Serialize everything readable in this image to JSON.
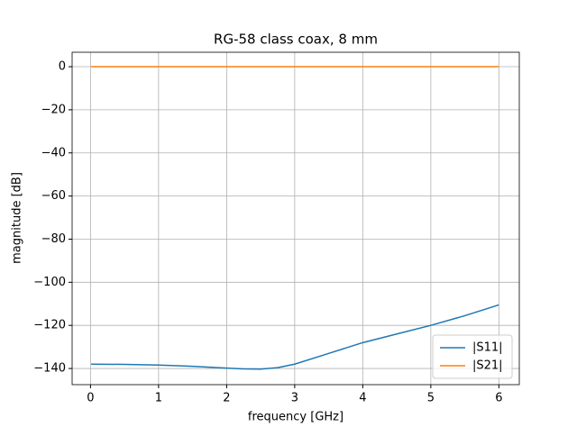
{
  "chart_data": {
    "type": "line",
    "title": "RG-58 class coax, 8 mm",
    "xlabel": "frequency [GHz]",
    "ylabel": "magnitude [dB]",
    "x": [
      0.01,
      0.5,
      1,
      1.5,
      2,
      2.25,
      2.5,
      2.75,
      3,
      3.5,
      4,
      4.5,
      5,
      5.5,
      6
    ],
    "series": [
      {
        "name": "|S11|",
        "color": "#1f77b4",
        "values": [
          -138,
          -138.1,
          -138.4,
          -139,
          -139.8,
          -140.2,
          -140.3,
          -139.6,
          -138,
          -133,
          -128,
          -124,
          -120,
          -115.5,
          -110.5
        ]
      },
      {
        "name": "|S21|",
        "color": "#ff7f0e",
        "values": [
          0,
          0,
          0,
          0,
          0,
          0,
          0,
          0,
          0,
          0,
          0,
          0,
          0,
          0,
          0
        ]
      }
    ],
    "xlim": [
      -0.27,
      6.3
    ],
    "ylim": [
      -147.5,
      6.7
    ],
    "xticks": [
      0,
      1,
      2,
      3,
      4,
      5,
      6
    ],
    "yticks": [
      0,
      {
        "value": -20,
        "label": "−20"
      },
      {
        "value": -40,
        "label": "−40"
      },
      {
        "value": -60,
        "label": "−60"
      },
      {
        "value": -80,
        "label": "−80"
      },
      {
        "value": -100,
        "label": "−100"
      },
      {
        "value": -120,
        "label": "−120"
      },
      {
        "value": -140,
        "label": "−140"
      }
    ],
    "grid": true,
    "legend": "lower right"
  }
}
